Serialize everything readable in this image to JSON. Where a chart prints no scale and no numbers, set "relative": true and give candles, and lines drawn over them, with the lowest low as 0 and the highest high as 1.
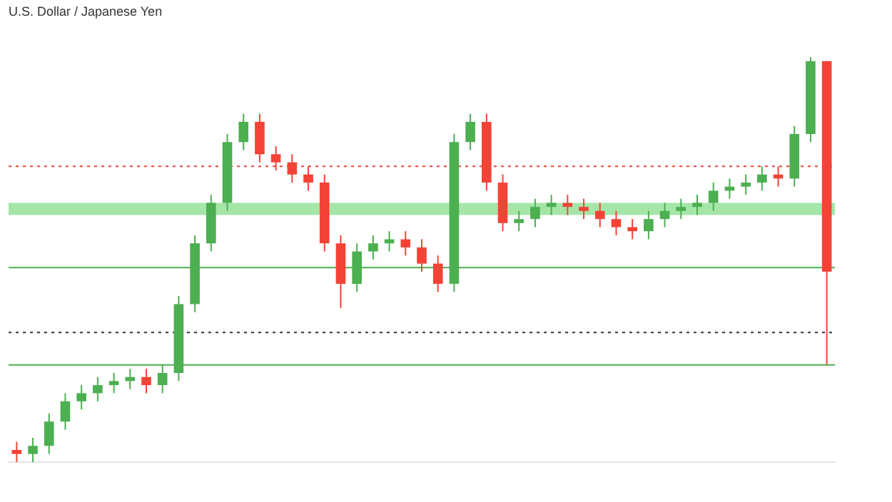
{
  "chart_data": {
    "type": "candlestick",
    "title": "U.S. Dollar / Japanese Yen",
    "relative": true,
    "grid": false,
    "legend": false,
    "categories": [
      null,
      null,
      null,
      null,
      null,
      null,
      null,
      null,
      null,
      null,
      null,
      null,
      null,
      null,
      null,
      null,
      null,
      null,
      null,
      null,
      null,
      null,
      null,
      null,
      null,
      null,
      null,
      null,
      null,
      null,
      null,
      null,
      null,
      null,
      null,
      null,
      null,
      null,
      null,
      null,
      null,
      null,
      null,
      null,
      null,
      null,
      null,
      null,
      null,
      null,
      null
    ],
    "ohlc": [
      [
        0.03,
        0.05,
        0.0,
        0.02
      ],
      [
        0.02,
        0.06,
        0.0,
        0.04
      ],
      [
        0.04,
        0.12,
        0.02,
        0.1
      ],
      [
        0.1,
        0.17,
        0.08,
        0.15
      ],
      [
        0.15,
        0.19,
        0.13,
        0.17
      ],
      [
        0.17,
        0.21,
        0.15,
        0.19
      ],
      [
        0.19,
        0.22,
        0.17,
        0.2
      ],
      [
        0.2,
        0.23,
        0.18,
        0.21
      ],
      [
        0.21,
        0.23,
        0.17,
        0.19
      ],
      [
        0.19,
        0.24,
        0.17,
        0.22
      ],
      [
        0.22,
        0.41,
        0.2,
        0.39
      ],
      [
        0.39,
        0.56,
        0.37,
        0.54
      ],
      [
        0.54,
        0.66,
        0.52,
        0.64
      ],
      [
        0.64,
        0.81,
        0.62,
        0.79
      ],
      [
        0.79,
        0.86,
        0.77,
        0.84
      ],
      [
        0.84,
        0.86,
        0.74,
        0.76
      ],
      [
        0.76,
        0.78,
        0.72,
        0.74
      ],
      [
        0.74,
        0.76,
        0.69,
        0.71
      ],
      [
        0.71,
        0.73,
        0.67,
        0.69
      ],
      [
        0.69,
        0.71,
        0.52,
        0.54
      ],
      [
        0.54,
        0.56,
        0.38,
        0.44
      ],
      [
        0.44,
        0.54,
        0.42,
        0.52
      ],
      [
        0.52,
        0.56,
        0.5,
        0.54
      ],
      [
        0.54,
        0.57,
        0.52,
        0.55
      ],
      [
        0.55,
        0.57,
        0.51,
        0.53
      ],
      [
        0.53,
        0.55,
        0.47,
        0.49
      ],
      [
        0.49,
        0.51,
        0.42,
        0.44
      ],
      [
        0.44,
        0.81,
        0.42,
        0.79
      ],
      [
        0.79,
        0.86,
        0.77,
        0.84
      ],
      [
        0.84,
        0.86,
        0.67,
        0.69
      ],
      [
        0.69,
        0.71,
        0.57,
        0.59
      ],
      [
        0.59,
        0.62,
        0.57,
        0.6
      ],
      [
        0.6,
        0.65,
        0.58,
        0.63
      ],
      [
        0.63,
        0.66,
        0.61,
        0.64
      ],
      [
        0.64,
        0.66,
        0.61,
        0.63
      ],
      [
        0.63,
        0.65,
        0.6,
        0.62
      ],
      [
        0.62,
        0.64,
        0.58,
        0.6
      ],
      [
        0.6,
        0.62,
        0.56,
        0.58
      ],
      [
        0.58,
        0.6,
        0.55,
        0.57
      ],
      [
        0.57,
        0.62,
        0.55,
        0.6
      ],
      [
        0.6,
        0.64,
        0.58,
        0.62
      ],
      [
        0.62,
        0.65,
        0.6,
        0.63
      ],
      [
        0.63,
        0.66,
        0.61,
        0.64
      ],
      [
        0.64,
        0.69,
        0.62,
        0.67
      ],
      [
        0.67,
        0.7,
        0.65,
        0.68
      ],
      [
        0.68,
        0.71,
        0.66,
        0.69
      ],
      [
        0.69,
        0.73,
        0.67,
        0.71
      ],
      [
        0.71,
        0.73,
        0.68,
        0.7
      ],
      [
        0.7,
        0.83,
        0.68,
        0.81
      ],
      [
        0.81,
        1.0,
        0.79,
        0.99
      ],
      [
        0.99,
        0.99,
        0.24,
        0.47
      ]
    ],
    "colors": [
      "#f44336",
      "#4caf50",
      "#4caf50",
      "#4caf50",
      "#4caf50",
      "#4caf50",
      "#4caf50",
      "#4caf50",
      "#f44336",
      "#4caf50",
      "#4caf50",
      "#4caf50",
      "#4caf50",
      "#4caf50",
      "#4caf50",
      "#f44336",
      "#f44336",
      "#f44336",
      "#f44336",
      "#f44336",
      "#f44336",
      "#4caf50",
      "#4caf50",
      "#4caf50",
      "#f44336",
      "#f44336",
      "#f44336",
      "#4caf50",
      "#4caf50",
      "#f44336",
      "#f44336",
      "#4caf50",
      "#4caf50",
      "#4caf50",
      "#f44336",
      "#f44336",
      "#f44336",
      "#f44336",
      "#f44336",
      "#4caf50",
      "#4caf50",
      "#4caf50",
      "#4caf50",
      "#4caf50",
      "#4caf50",
      "#4caf50",
      "#4caf50",
      "#f44336",
      "#4caf50",
      "#4caf50",
      "#f44336"
    ],
    "ref_lines": [
      {
        "axis": "y",
        "value": 0.24,
        "color": "#4caf50",
        "line_style": "solid"
      },
      {
        "axis": "y",
        "value": 0.32,
        "color": "#333333",
        "line_style": "dotted"
      },
      {
        "axis": "y",
        "value": 0.73,
        "color": "#f44336",
        "line_style": "dotted"
      },
      {
        "axis": "y",
        "value": 0.48,
        "color": "#4caf50",
        "line_style": "solid"
      }
    ],
    "bands": [
      {
        "axis": "y",
        "from": 0.61,
        "to": 0.64,
        "color": "#a5e6a8"
      }
    ]
  }
}
